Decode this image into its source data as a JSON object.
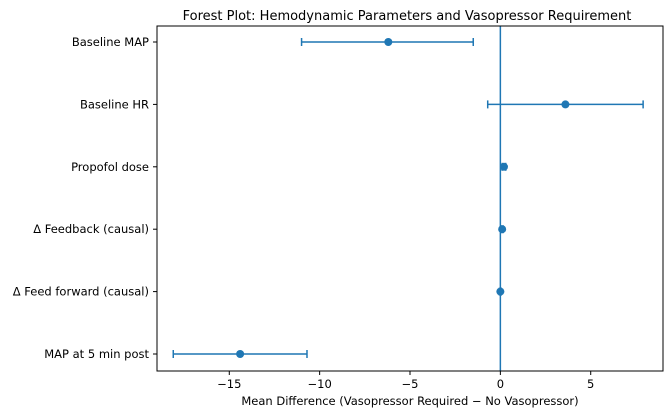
{
  "chart_data": {
    "type": "forest",
    "title": "Forest Plot: Hemodynamic Parameters and Vasopressor Requirement",
    "xlabel": "Mean Difference (Vasopressor Required − No Vasopressor)",
    "ylabel": "",
    "xlim": [
      -19,
      9
    ],
    "xticks": [
      -15,
      -10,
      -5,
      0,
      5
    ],
    "xtick_labels": [
      "−15",
      "−10",
      "−5",
      "0",
      "5"
    ],
    "reference_line_x": 0,
    "grid": false,
    "colors": {
      "marker": "#1f77b4",
      "reference": "#1f77b4",
      "axis": "#000000"
    },
    "rows": [
      {
        "label": "Baseline MAP",
        "estimate": -6.2,
        "ci_low": -11.0,
        "ci_high": -1.5
      },
      {
        "label": "Baseline HR",
        "estimate": 3.6,
        "ci_low": -0.7,
        "ci_high": 7.9
      },
      {
        "label": "Propofol dose",
        "estimate": 0.2,
        "ci_low": 0.1,
        "ci_high": 0.3
      },
      {
        "label": "Δ Feedback (causal)",
        "estimate": 0.1,
        "ci_low": 0.05,
        "ci_high": 0.15
      },
      {
        "label": "Δ Feed forward (causal)",
        "estimate": 0.0,
        "ci_low": -0.05,
        "ci_high": 0.05
      },
      {
        "label": "MAP at 5 min post",
        "estimate": -14.4,
        "ci_low": -18.1,
        "ci_high": -10.7
      }
    ]
  }
}
